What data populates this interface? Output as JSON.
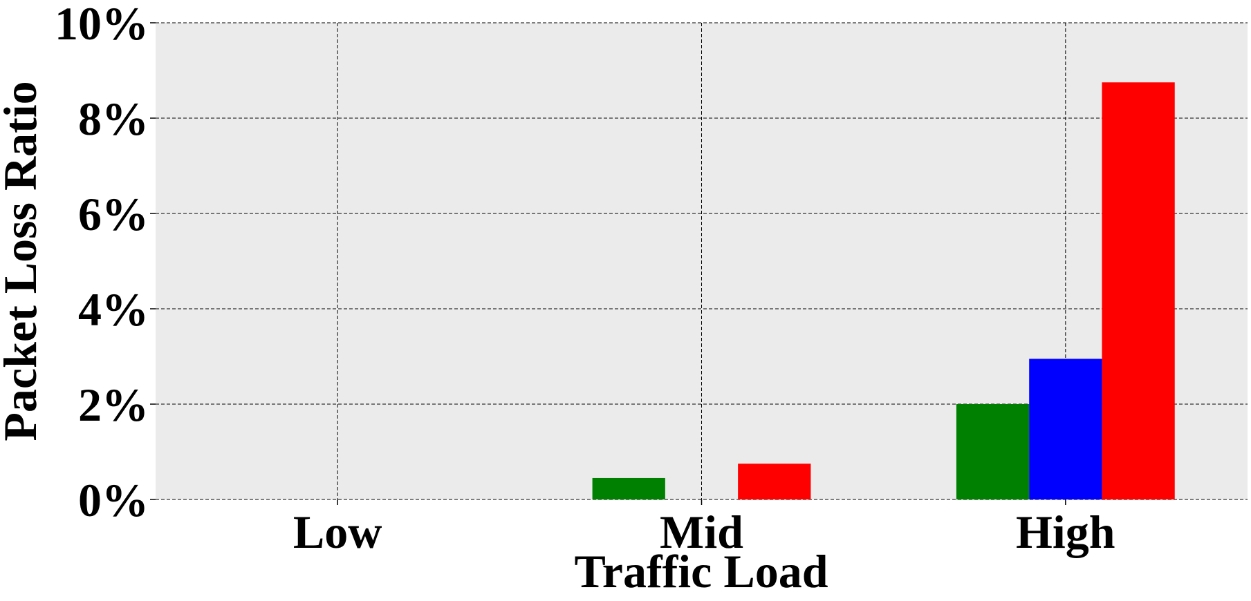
{
  "chart_data": {
    "type": "bar",
    "title": "",
    "xlabel": "Traffic Load",
    "ylabel": "Packet Loss Ratio",
    "categories": [
      "Low",
      "Mid",
      "High"
    ],
    "series": [
      {
        "color": "#008000",
        "values": [
          0.0,
          0.45,
          2.0
        ]
      },
      {
        "color": "#0000ff",
        "values": [
          0.0,
          0.0,
          2.95
        ]
      },
      {
        "color": "#ff0000",
        "values": [
          0.0,
          0.75,
          8.75
        ]
      }
    ],
    "ylim": [
      0,
      10
    ],
    "yticks": [
      0,
      2,
      4,
      6,
      8,
      10
    ],
    "ytick_labels": [
      "0%",
      "2%",
      "4%",
      "6%",
      "8%",
      "10%"
    ],
    "grid": true,
    "grid_style": "dashed",
    "legend": "none",
    "background_color": "#ebebeb"
  }
}
